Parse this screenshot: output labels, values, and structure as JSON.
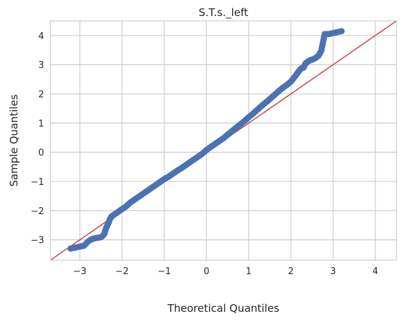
{
  "chart_data": {
    "type": "scatter",
    "title": "S.T.s._left",
    "xlabel": "Theoretical Quantiles",
    "ylabel": "Sample Quantiles",
    "xlim": [
      -3.7,
      4.5
    ],
    "ylim": [
      -3.7,
      4.5
    ],
    "xticks": [
      -3,
      -2,
      -1,
      0,
      1,
      2,
      3,
      4
    ],
    "yticks": [
      -3,
      -2,
      -1,
      0,
      1,
      2,
      3,
      4
    ],
    "xtick_labels": [
      "−3",
      "−2",
      "−1",
      "0",
      "1",
      "2",
      "3",
      "4"
    ],
    "ytick_labels": [
      "−3",
      "−2",
      "−1",
      "0",
      "1",
      "2",
      "3",
      "4"
    ],
    "grid": true,
    "colors": {
      "points": "#4c72b0",
      "reference_line": "#c44e52",
      "grid": "#cccccc",
      "frame": "#cccccc"
    },
    "reference_line": {
      "slope": 1,
      "intercept": 0
    },
    "series": [
      {
        "values_x": [
          -3.22,
          -3.05,
          -2.9,
          -2.8,
          -2.72,
          -2.65,
          -2.58,
          -2.52,
          -2.47,
          -2.42,
          -2.38,
          -2.33,
          -2.29,
          -2.25,
          -2.2,
          -2.15,
          -2.1,
          -2.0,
          -1.9,
          -1.8,
          -1.7,
          -1.6,
          -1.5,
          -1.4,
          -1.3,
          -1.2,
          -1.1,
          -1.0,
          -0.9,
          -0.8,
          -0.7,
          -0.6,
          -0.5,
          -0.4,
          -0.3,
          -0.2,
          -0.1,
          0.0,
          0.1,
          0.2,
          0.3,
          0.4,
          0.5,
          0.6,
          0.7,
          0.8,
          0.9,
          1.0,
          1.1,
          1.2,
          1.3,
          1.4,
          1.5,
          1.6,
          1.7,
          1.8,
          1.9,
          2.0,
          2.1,
          2.2,
          2.25,
          2.3,
          2.35,
          2.4,
          2.45,
          2.55,
          2.65,
          2.72,
          2.8,
          2.9,
          3.2
        ],
        "values_y": [
          -3.3,
          -3.25,
          -3.2,
          -3.05,
          -2.98,
          -2.95,
          -2.93,
          -2.92,
          -2.88,
          -2.8,
          -2.6,
          -2.45,
          -2.3,
          -2.2,
          -2.15,
          -2.1,
          -2.05,
          -1.95,
          -1.85,
          -1.72,
          -1.62,
          -1.52,
          -1.42,
          -1.32,
          -1.22,
          -1.12,
          -1.02,
          -0.92,
          -0.84,
          -0.74,
          -0.64,
          -0.55,
          -0.45,
          -0.35,
          -0.25,
          -0.15,
          -0.05,
          0.08,
          0.18,
          0.28,
          0.38,
          0.48,
          0.6,
          0.72,
          0.84,
          0.95,
          1.07,
          1.2,
          1.32,
          1.45,
          1.58,
          1.7,
          1.82,
          1.95,
          2.08,
          2.2,
          2.3,
          2.42,
          2.6,
          2.8,
          2.88,
          2.9,
          3.05,
          3.1,
          3.15,
          3.2,
          3.3,
          3.48,
          4.05,
          4.05,
          4.15
        ]
      }
    ]
  }
}
